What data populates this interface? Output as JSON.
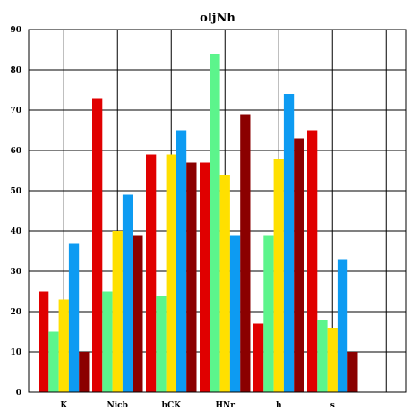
{
  "chart_data": {
    "type": "bar",
    "title": "oljNh",
    "xlabel": "",
    "ylabel": "",
    "categories": [
      "K",
      "Nicb",
      "hCK",
      "HNr",
      "h",
      "s"
    ],
    "ylim": [
      0,
      90
    ],
    "yticks": [
      0,
      10,
      20,
      30,
      40,
      50,
      60,
      70,
      80,
      90
    ],
    "grid": true,
    "legend": "none",
    "series": [
      {
        "color": "#e00000",
        "values": [
          25,
          73,
          59,
          57,
          17,
          65
        ]
      },
      {
        "color": "#5cf58c",
        "values": [
          15,
          25,
          24,
          84,
          39,
          18
        ]
      },
      {
        "color": "#ffe000",
        "values": [
          23,
          40,
          59,
          54,
          58,
          16
        ]
      },
      {
        "color": "#0d9bf2",
        "values": [
          37,
          49,
          65,
          39,
          74,
          33
        ]
      },
      {
        "color": "#8b0000",
        "values": [
          10,
          39,
          57,
          69,
          63,
          10
        ]
      }
    ]
  }
}
